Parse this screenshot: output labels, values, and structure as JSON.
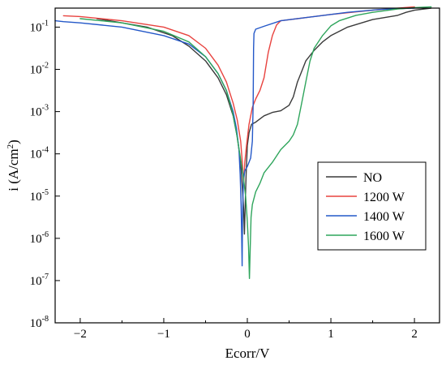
{
  "chart_data": {
    "type": "line",
    "title": "",
    "xlabel": "Ecorr/V",
    "ylabel_main": "i (A/cm",
    "ylabel_sup": "2",
    "ylabel_end": ")",
    "xlim": [
      -2.3,
      2.3
    ],
    "ylim": [
      -8,
      -0.55
    ],
    "y_scale": "log",
    "grid": false,
    "legend_position": "center-right",
    "x_ticks": [
      {
        "value": -2,
        "label": "−2"
      },
      {
        "value": -1,
        "label": "−1"
      },
      {
        "value": 0,
        "label": "0"
      },
      {
        "value": 1,
        "label": "1"
      },
      {
        "value": 2,
        "label": "2"
      }
    ],
    "y_ticks": [
      {
        "value": -8,
        "base": "10",
        "exp": "-8"
      },
      {
        "value": -7,
        "base": "10",
        "exp": "-7"
      },
      {
        "value": -6,
        "base": "10",
        "exp": "-6"
      },
      {
        "value": -5,
        "base": "10",
        "exp": "-5"
      },
      {
        "value": -4,
        "base": "10",
        "exp": "-4"
      },
      {
        "value": -3,
        "base": "10",
        "exp": "-3"
      },
      {
        "value": -2,
        "base": "10",
        "exp": "-2"
      },
      {
        "value": -1,
        "base": "10",
        "exp": "-1"
      }
    ],
    "series": [
      {
        "name": "NO",
        "color": "#3a3a3a",
        "points": [
          [
            -1.8,
            -0.8
          ],
          [
            -1.5,
            -0.9
          ],
          [
            -1.2,
            -1.0
          ],
          [
            -0.9,
            -1.2
          ],
          [
            -0.7,
            -1.45
          ],
          [
            -0.5,
            -1.8
          ],
          [
            -0.35,
            -2.2
          ],
          [
            -0.25,
            -2.6
          ],
          [
            -0.17,
            -3.1
          ],
          [
            -0.12,
            -3.6
          ],
          [
            -0.08,
            -4.2
          ],
          [
            -0.06,
            -4.8
          ],
          [
            -0.045,
            -5.3
          ],
          [
            -0.035,
            -5.9
          ],
          [
            -0.025,
            -5.2
          ],
          [
            -0.015,
            -4.5
          ],
          [
            0.0,
            -3.8
          ],
          [
            0.02,
            -3.5
          ],
          [
            0.05,
            -3.3
          ],
          [
            0.1,
            -3.25
          ],
          [
            0.2,
            -3.1
          ],
          [
            0.3,
            -3.02
          ],
          [
            0.4,
            -2.98
          ],
          [
            0.5,
            -2.85
          ],
          [
            0.55,
            -2.65
          ],
          [
            0.6,
            -2.3
          ],
          [
            0.65,
            -2.05
          ],
          [
            0.7,
            -1.8
          ],
          [
            0.8,
            -1.55
          ],
          [
            0.9,
            -1.35
          ],
          [
            1.0,
            -1.2
          ],
          [
            1.2,
            -1.0
          ],
          [
            1.5,
            -0.82
          ],
          [
            1.8,
            -0.72
          ],
          [
            1.9,
            -0.65
          ],
          [
            2.0,
            -0.6
          ],
          [
            2.2,
            -0.55
          ]
        ]
      },
      {
        "name": "1200 W",
        "color": "#e8433f",
        "points": [
          [
            -2.2,
            -0.73
          ],
          [
            -2.0,
            -0.75
          ],
          [
            -1.5,
            -0.85
          ],
          [
            -1.0,
            -1.0
          ],
          [
            -0.7,
            -1.2
          ],
          [
            -0.5,
            -1.5
          ],
          [
            -0.35,
            -1.9
          ],
          [
            -0.25,
            -2.3
          ],
          [
            -0.17,
            -2.8
          ],
          [
            -0.12,
            -3.2
          ],
          [
            -0.08,
            -3.7
          ],
          [
            -0.06,
            -4.2
          ],
          [
            -0.045,
            -4.7
          ],
          [
            -0.03,
            -4.2
          ],
          [
            -0.01,
            -3.8
          ],
          [
            0.02,
            -3.3
          ],
          [
            0.06,
            -2.9
          ],
          [
            0.1,
            -2.7
          ],
          [
            0.15,
            -2.5
          ],
          [
            0.2,
            -2.2
          ],
          [
            0.25,
            -1.6
          ],
          [
            0.3,
            -1.2
          ],
          [
            0.35,
            -0.95
          ],
          [
            0.4,
            -0.85
          ],
          [
            0.6,
            -0.8
          ],
          [
            1.0,
            -0.7
          ],
          [
            1.5,
            -0.6
          ],
          [
            2.0,
            -0.52
          ]
        ]
      },
      {
        "name": "1400 W",
        "color": "#2458c8",
        "points": [
          [
            -2.3,
            -0.85
          ],
          [
            -2.2,
            -0.87
          ],
          [
            -2.0,
            -0.9
          ],
          [
            -1.5,
            -1.0
          ],
          [
            -1.0,
            -1.2
          ],
          [
            -0.7,
            -1.4
          ],
          [
            -0.5,
            -1.7
          ],
          [
            -0.35,
            -2.1
          ],
          [
            -0.25,
            -2.5
          ],
          [
            -0.17,
            -3.0
          ],
          [
            -0.13,
            -3.4
          ],
          [
            -0.1,
            -3.9
          ],
          [
            -0.085,
            -4.5
          ],
          [
            -0.075,
            -5.2
          ],
          [
            -0.068,
            -5.9
          ],
          [
            -0.062,
            -6.65
          ],
          [
            -0.058,
            -5.6
          ],
          [
            -0.052,
            -5.0
          ],
          [
            -0.045,
            -4.6
          ],
          [
            -0.03,
            -4.4
          ],
          [
            0.0,
            -4.3
          ],
          [
            0.04,
            -4.1
          ],
          [
            0.06,
            -3.7
          ],
          [
            0.07,
            -2.8
          ],
          [
            0.075,
            -1.5
          ],
          [
            0.08,
            -1.15
          ],
          [
            0.1,
            -1.05
          ],
          [
            0.2,
            -0.98
          ],
          [
            0.4,
            -0.85
          ],
          [
            0.8,
            -0.75
          ],
          [
            1.2,
            -0.65
          ],
          [
            1.6,
            -0.58
          ],
          [
            2.0,
            -0.55
          ]
        ]
      },
      {
        "name": "1600 W",
        "color": "#2fa55c",
        "points": [
          [
            -2.0,
            -0.8
          ],
          [
            -1.5,
            -0.9
          ],
          [
            -1.0,
            -1.1
          ],
          [
            -0.7,
            -1.35
          ],
          [
            -0.5,
            -1.7
          ],
          [
            -0.35,
            -2.1
          ],
          [
            -0.25,
            -2.5
          ],
          [
            -0.18,
            -3.0
          ],
          [
            -0.13,
            -3.5
          ],
          [
            -0.09,
            -4.0
          ],
          [
            -0.05,
            -4.5
          ],
          [
            -0.02,
            -5.0
          ],
          [
            0.0,
            -5.6
          ],
          [
            0.015,
            -6.2
          ],
          [
            0.025,
            -6.95
          ],
          [
            0.035,
            -6.2
          ],
          [
            0.045,
            -5.5
          ],
          [
            0.06,
            -5.2
          ],
          [
            0.1,
            -4.9
          ],
          [
            0.15,
            -4.7
          ],
          [
            0.2,
            -4.45
          ],
          [
            0.3,
            -4.2
          ],
          [
            0.4,
            -3.9
          ],
          [
            0.5,
            -3.7
          ],
          [
            0.55,
            -3.55
          ],
          [
            0.6,
            -3.3
          ],
          [
            0.65,
            -2.8
          ],
          [
            0.7,
            -2.3
          ],
          [
            0.75,
            -1.8
          ],
          [
            0.8,
            -1.5
          ],
          [
            0.9,
            -1.2
          ],
          [
            1.0,
            -0.97
          ],
          [
            1.1,
            -0.85
          ],
          [
            1.3,
            -0.72
          ],
          [
            1.5,
            -0.65
          ],
          [
            1.8,
            -0.57
          ],
          [
            2.0,
            -0.54
          ],
          [
            2.2,
            -0.52
          ]
        ]
      }
    ]
  }
}
